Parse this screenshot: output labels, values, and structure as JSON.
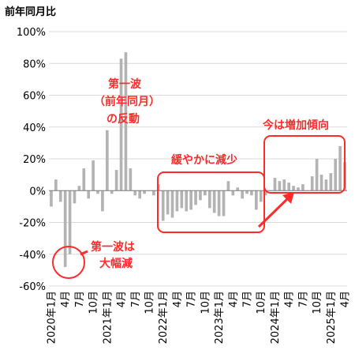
{
  "chart_data": {
    "type": "bar",
    "title": "",
    "unit_label": "前年同月比",
    "xlabel": "",
    "ylabel": "",
    "ylim": [
      -60,
      100
    ],
    "y_ticks": [
      -60,
      -40,
      -20,
      0,
      20,
      40,
      60,
      80,
      100
    ],
    "y_tick_labels": [
      "-60%",
      "-40%",
      "-20%",
      "0%",
      "20%",
      "40%",
      "60%",
      "80%",
      "100%"
    ],
    "grid": true,
    "bar_color": "#b3b3b3",
    "categories": [
      "2020年1月",
      "2020年2月",
      "2020年3月",
      "2020年4月",
      "2020年5月",
      "2020年6月",
      "2020年7月",
      "2020年8月",
      "2020年9月",
      "2020年10月",
      "2020年11月",
      "2020年12月",
      "2021年1月",
      "2021年2月",
      "2021年3月",
      "2021年4月",
      "2021年5月",
      "2021年6月",
      "2021年7月",
      "2021年8月",
      "2021年9月",
      "2021年10月",
      "2021年11月",
      "2021年12月",
      "2022年1月",
      "2022年2月",
      "2022年3月",
      "2022年4月",
      "2022年5月",
      "2022年6月",
      "2022年7月",
      "2022年8月",
      "2022年9月",
      "2022年10月",
      "2022年11月",
      "2022年12月",
      "2023年1月",
      "2023年2月",
      "2023年3月",
      "2023年4月",
      "2023年5月",
      "2023年6月",
      "2023年7月",
      "2023年8月",
      "2023年9月",
      "2023年10月",
      "2023年11月",
      "2023年12月",
      "2024年1月",
      "2024年2月",
      "2024年3月",
      "2024年4月",
      "2024年5月",
      "2024年6月",
      "2024年7月",
      "2024年8月",
      "2024年9月",
      "2024年10月",
      "2024年11月",
      "2024年12月",
      "2025年1月",
      "2025年2月",
      "2025年3月",
      "2025年4月"
    ],
    "values": [
      -10,
      7,
      -7,
      -48,
      -40,
      -8,
      3,
      14,
      -5,
      19,
      -2,
      -13,
      38,
      -2,
      13,
      83,
      87,
      14,
      -3,
      -5,
      -2,
      0,
      -3,
      4,
      -19,
      -15,
      -17,
      -13,
      -11,
      -13,
      -12,
      -9,
      -6,
      -3,
      -11,
      -14,
      -16,
      -16,
      6,
      -3,
      2,
      -5,
      -2,
      -3,
      -12,
      -7,
      -3,
      0,
      8,
      6,
      7,
      5,
      3,
      2,
      4,
      0,
      9,
      20,
      10,
      7,
      11,
      20,
      28,
      18
    ],
    "x_tick_labels": [
      {
        "index": 0,
        "label": "2020年1月"
      },
      {
        "index": 3,
        "label": "4月"
      },
      {
        "index": 6,
        "label": "7月"
      },
      {
        "index": 9,
        "label": "10月"
      },
      {
        "index": 12,
        "label": "2021年1月"
      },
      {
        "index": 15,
        "label": "4月"
      },
      {
        "index": 18,
        "label": "7月"
      },
      {
        "index": 21,
        "label": "10月"
      },
      {
        "index": 24,
        "label": "2022年1月"
      },
      {
        "index": 27,
        "label": "4月"
      },
      {
        "index": 30,
        "label": "7月"
      },
      {
        "index": 33,
        "label": "10月"
      },
      {
        "index": 36,
        "label": "2023年1月"
      },
      {
        "index": 39,
        "label": "4月"
      },
      {
        "index": 42,
        "label": "7月"
      },
      {
        "index": 45,
        "label": "10月"
      },
      {
        "index": 48,
        "label": "2024年1月"
      },
      {
        "index": 51,
        "label": "4月"
      },
      {
        "index": 54,
        "label": "7月"
      },
      {
        "index": 57,
        "label": "10月"
      },
      {
        "index": 60,
        "label": "2025年1月"
      },
      {
        "index": 63,
        "label": "4月"
      }
    ],
    "annotations": [
      {
        "name": "annotation-first-wave-drop",
        "lines": [
          "第一波は",
          "大幅減"
        ]
      },
      {
        "name": "annotation-first-wave-rebound",
        "lines": [
          "第一波",
          "（前年同月）",
          "の反動"
        ]
      },
      {
        "name": "annotation-gradual-decrease",
        "lines": [
          "緩やかに減少"
        ]
      },
      {
        "name": "annotation-increasing-trend",
        "lines": [
          "今は増加傾向"
        ]
      }
    ],
    "accent_color": "#ff2a2a",
    "grid_color": "#d9d9d9"
  }
}
